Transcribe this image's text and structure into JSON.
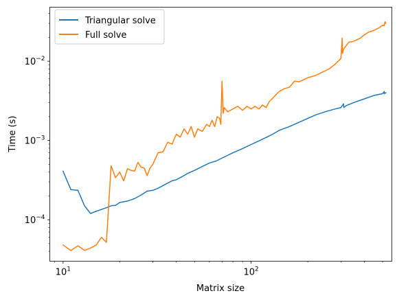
{
  "chart_data": {
    "type": "line",
    "title": "",
    "xlabel": "Matrix size",
    "ylabel": "Time (s)",
    "xscale": "log",
    "yscale": "log",
    "xlim": [
      8.5,
      560
    ],
    "ylim": [
      3e-05,
      0.048
    ],
    "grid": false,
    "legend_position": "top-left",
    "x_ticks": [
      {
        "value": 10,
        "base": "10",
        "exp": "1"
      },
      {
        "value": 100,
        "base": "10",
        "exp": "2"
      }
    ],
    "y_ticks": [
      {
        "value": 0.0001,
        "base": "10",
        "exp": "−4"
      },
      {
        "value": 0.001,
        "base": "10",
        "exp": "−3"
      },
      {
        "value": 0.01,
        "base": "10",
        "exp": "−2"
      }
    ],
    "series": [
      {
        "name": "Triangular solve",
        "color": "#1f77b4",
        "x": [
          10,
          11,
          12,
          13,
          14,
          15,
          16,
          17,
          18,
          19,
          20,
          22,
          24,
          26,
          28,
          30,
          32,
          34,
          36,
          38,
          40,
          43,
          46,
          50,
          55,
          60,
          65,
          70,
          75,
          80,
          90,
          100,
          110,
          120,
          130,
          140,
          150,
          160,
          180,
          200,
          220,
          250,
          280,
          300,
          310,
          311,
          320,
          350,
          400,
          450,
          500,
          510,
          511,
          520
        ],
        "y": [
          0.00041,
          0.00024,
          0.000235,
          0.00015,
          0.00012,
          0.000128,
          0.000135,
          0.000142,
          0.00015,
          0.000152,
          0.000165,
          0.000172,
          0.000185,
          0.000205,
          0.00023,
          0.000235,
          0.00025,
          0.00027,
          0.00029,
          0.00031,
          0.00032,
          0.00035,
          0.000385,
          0.00042,
          0.00047,
          0.00052,
          0.00055,
          0.0006,
          0.00065,
          0.0007,
          0.00079,
          0.00089,
          0.00099,
          0.00109,
          0.0012,
          0.00133,
          0.00142,
          0.0015,
          0.0017,
          0.0019,
          0.0021,
          0.00232,
          0.0025,
          0.0026,
          0.0029,
          0.0026,
          0.00275,
          0.003,
          0.00335,
          0.0037,
          0.0039,
          0.00415,
          0.0039,
          0.004
        ]
      },
      {
        "name": "Full solve",
        "color": "#ff7f0e",
        "x": [
          10,
          11,
          12,
          13,
          14,
          15,
          16,
          17,
          18,
          19,
          20,
          21,
          22,
          23,
          24,
          25,
          26,
          27,
          28,
          29,
          30,
          32,
          34,
          36,
          38,
          40,
          42,
          44,
          46,
          48,
          50,
          52,
          55,
          58,
          60,
          62,
          64,
          66,
          68,
          69,
          70,
          71,
          72,
          75,
          80,
          85,
          90,
          95,
          100,
          105,
          110,
          115,
          120,
          125,
          130,
          140,
          150,
          160,
          170,
          180,
          200,
          220,
          240,
          260,
          280,
          300,
          305,
          306,
          310,
          320,
          330,
          350,
          380,
          400,
          420,
          450,
          480,
          500,
          510,
          515,
          520
        ],
        "y": [
          4.8e-05,
          4.1e-05,
          4.7e-05,
          4.1e-05,
          4.4e-05,
          4.8e-05,
          6e-05,
          5.2e-05,
          0.00048,
          0.00034,
          0.0004,
          0.00031,
          0.00044,
          0.00042,
          0.00041,
          0.00053,
          0.00046,
          0.00045,
          0.00036,
          0.00045,
          0.0005,
          0.0007,
          0.00072,
          0.00095,
          0.0009,
          0.0012,
          0.0011,
          0.0014,
          0.0012,
          0.0015,
          0.0011,
          0.0014,
          0.0013,
          0.0016,
          0.0015,
          0.0018,
          0.0015,
          0.002,
          0.0019,
          0.0016,
          0.0056,
          0.0022,
          0.0026,
          0.0023,
          0.0025,
          0.0027,
          0.0024,
          0.0027,
          0.0025,
          0.0027,
          0.0025,
          0.0028,
          0.0026,
          0.0031,
          0.0034,
          0.0041,
          0.0045,
          0.0047,
          0.0056,
          0.0055,
          0.0062,
          0.0066,
          0.0073,
          0.008,
          0.0092,
          0.0108,
          0.0195,
          0.0125,
          0.0142,
          0.0157,
          0.0173,
          0.0178,
          0.0195,
          0.0215,
          0.0232,
          0.0245,
          0.0265,
          0.0285,
          0.028,
          0.0315,
          0.03
        ]
      }
    ]
  }
}
